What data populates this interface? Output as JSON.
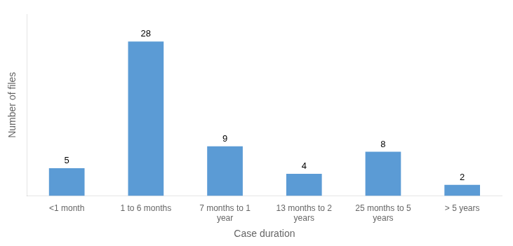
{
  "chart_data": {
    "type": "bar",
    "categories": [
      "<1 month",
      "1 to 6 months",
      "7 months to 1\nyear",
      "13 months to 2\nyears",
      "25 months to 5\nyears",
      "> 5 years"
    ],
    "values": [
      5,
      28,
      9,
      4,
      8,
      2
    ],
    "color": "#5B9BD5",
    "xlabel": "Case duration",
    "ylabel": "Number of files",
    "ylim": [
      0,
      33
    ],
    "grid": false,
    "data_labels": true,
    "tick_labels": "x"
  }
}
